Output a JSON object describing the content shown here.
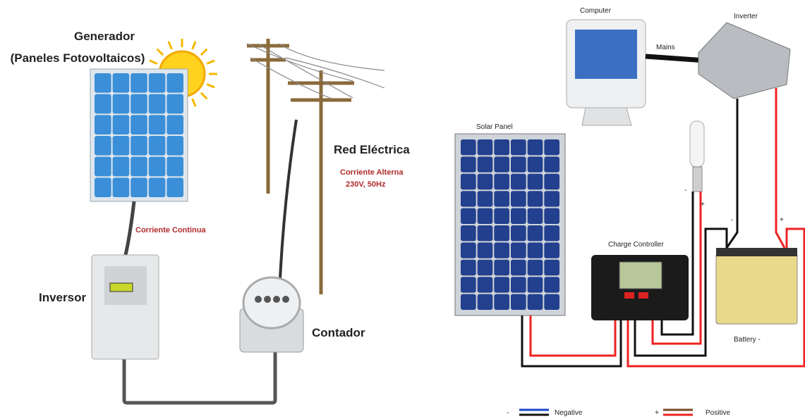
{
  "left": {
    "generator": {
      "title": "Generador",
      "subtitle": "(Paneles Fotovoltaicos)"
    },
    "grid": {
      "title": "Red Eléctrica",
      "current": "Corriente Alterna",
      "spec": "230V, 50Hz"
    },
    "dc_label": "Corriente Continua",
    "inverter": "Inversor",
    "meter": "Contador"
  },
  "right": {
    "computer": "Computer",
    "mains": "Mains",
    "inverter": "Inverter",
    "solar_panel": "Solar Panel",
    "charge_controller": "Charge Controller",
    "battery": "Battery -",
    "terminals": [
      "-",
      "+",
      "-",
      "+"
    ],
    "legend": [
      {
        "symbol": "-",
        "label": "Negative"
      },
      {
        "symbol": "+",
        "label": "Positive"
      }
    ]
  }
}
